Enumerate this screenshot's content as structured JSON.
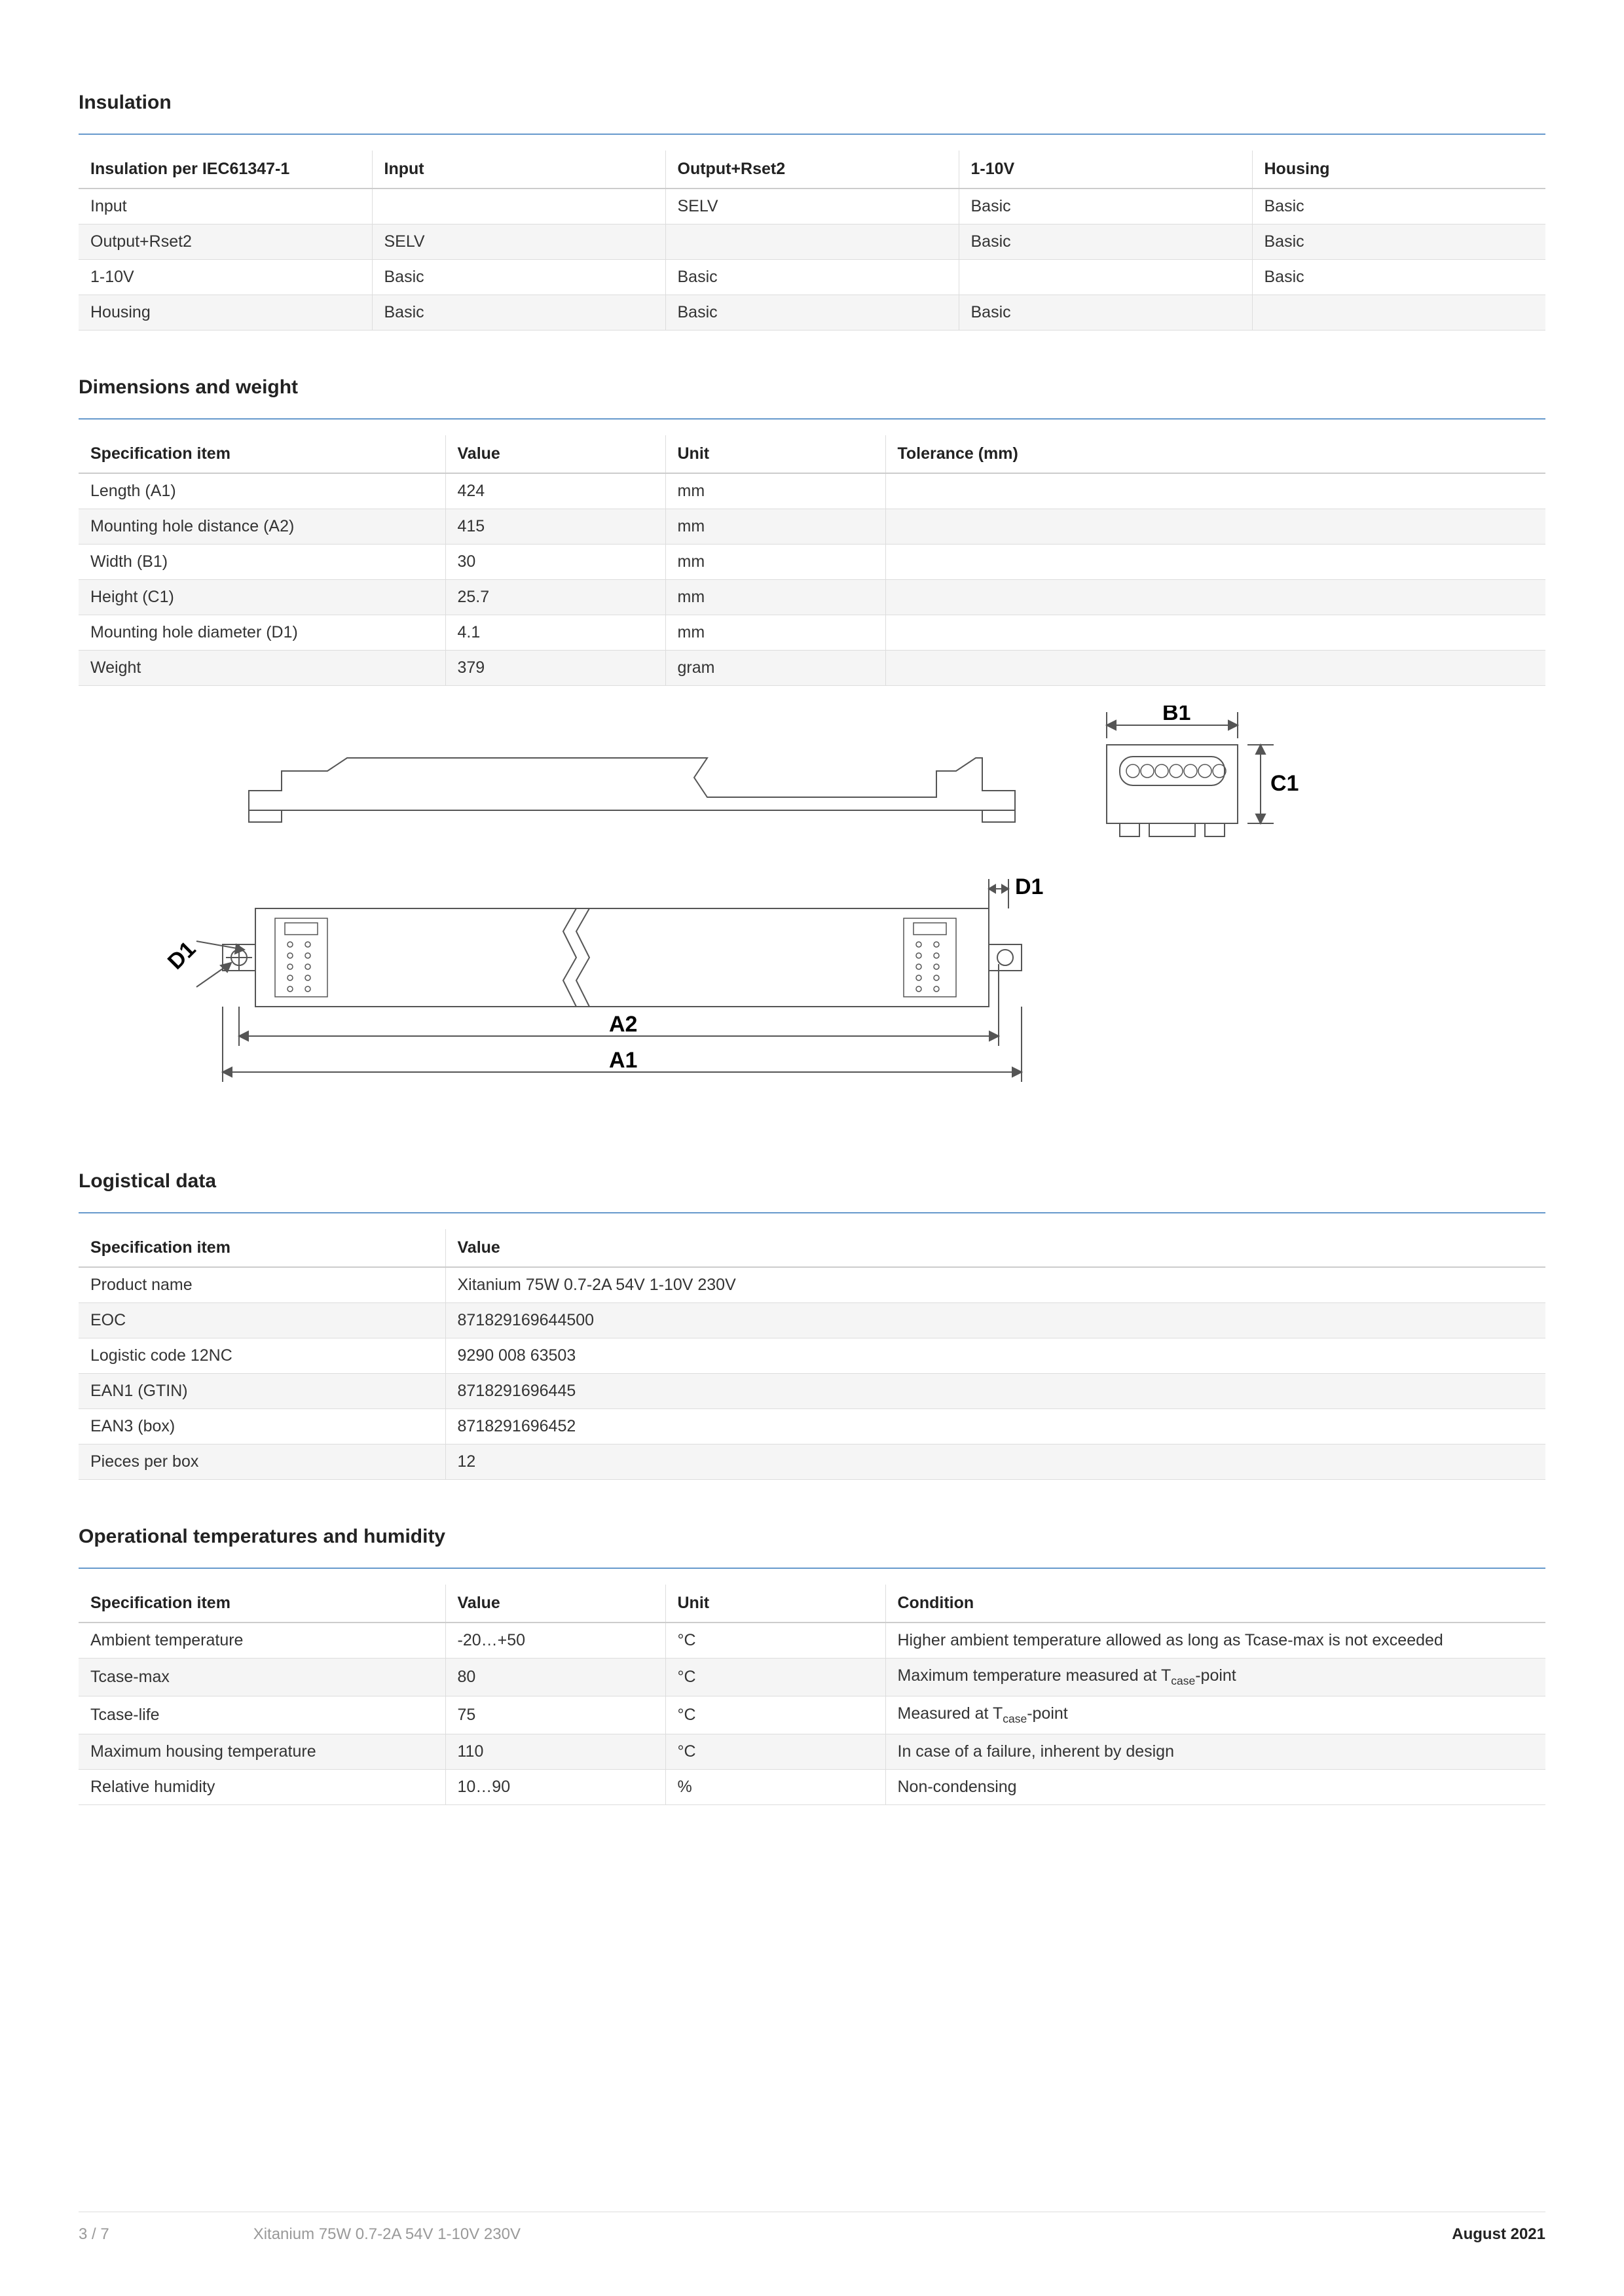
{
  "colors": {
    "divider": "#6699cc",
    "headerBorder": "#cccccc",
    "cellBorder": "#dddddd",
    "altRow": "#f5f5f5",
    "text": "#333333",
    "textMuted": "#999999",
    "diagramStroke": "#555555"
  },
  "sections": {
    "insulation": {
      "title": "Insulation",
      "columns": [
        "Insulation per IEC61347-1",
        "Input",
        "Output+Rset2",
        "1-10V",
        "Housing"
      ],
      "rows": [
        [
          "Input",
          "",
          "SELV",
          "Basic",
          "Basic"
        ],
        [
          "Output+Rset2",
          "SELV",
          "",
          "Basic",
          "Basic"
        ],
        [
          "1-10V",
          "Basic",
          "Basic",
          "",
          "Basic"
        ],
        [
          "Housing",
          "Basic",
          "Basic",
          "Basic",
          ""
        ]
      ]
    },
    "dimensions": {
      "title": "Dimensions and weight",
      "columns": [
        "Specification item",
        "Value",
        "Unit",
        "Tolerance (mm)"
      ],
      "rows": [
        [
          "Length (A1)",
          "424",
          "mm",
          ""
        ],
        [
          "Mounting hole distance (A2)",
          "415",
          "mm",
          ""
        ],
        [
          "Width (B1)",
          "30",
          "mm",
          ""
        ],
        [
          "Height (C1)",
          "25.7",
          "mm",
          ""
        ],
        [
          "Mounting hole diameter (D1)",
          "4.1",
          "mm",
          ""
        ],
        [
          "Weight",
          "379",
          "gram",
          ""
        ]
      ]
    },
    "logistical": {
      "title": "Logistical data",
      "columns": [
        "Specification item",
        "Value"
      ],
      "rows": [
        [
          "Product name",
          "Xitanium 75W 0.7-2A 54V 1-10V 230V"
        ],
        [
          "EOC",
          "871829169644500"
        ],
        [
          "Logistic code 12NC",
          "9290 008 63503"
        ],
        [
          "EAN1 (GTIN)",
          "8718291696445"
        ],
        [
          "EAN3 (box)",
          "8718291696452"
        ],
        [
          "Pieces per box",
          "12"
        ]
      ]
    },
    "operational": {
      "title": "Operational temperatures and humidity",
      "columns": [
        "Specification item",
        "Value",
        "Unit",
        "Condition"
      ],
      "rows": [
        [
          "Ambient temperature",
          "-20…+50",
          "°C",
          "Higher ambient temperature allowed as long as Tcase-max is not exceeded"
        ],
        [
          "Tcase-max",
          "80",
          "°C",
          "Maximum temperature measured at T{case}-point"
        ],
        [
          "Tcase-life",
          "75",
          "°C",
          "Measured at T{case}-point"
        ],
        [
          "Maximum housing temperature",
          "110",
          "°C",
          "In case of a failure, inherent by design"
        ],
        [
          "Relative humidity",
          "10…90",
          "%",
          "Non-condensing"
        ]
      ]
    }
  },
  "diagram": {
    "labels": {
      "A1": "A1",
      "A2": "A2",
      "B1": "B1",
      "C1": "C1",
      "D1": "D1"
    }
  },
  "footer": {
    "page": "3 / 7",
    "product": "Xitanium 75W 0.7-2A 54V 1-10V 230V",
    "date": "August 2021"
  }
}
